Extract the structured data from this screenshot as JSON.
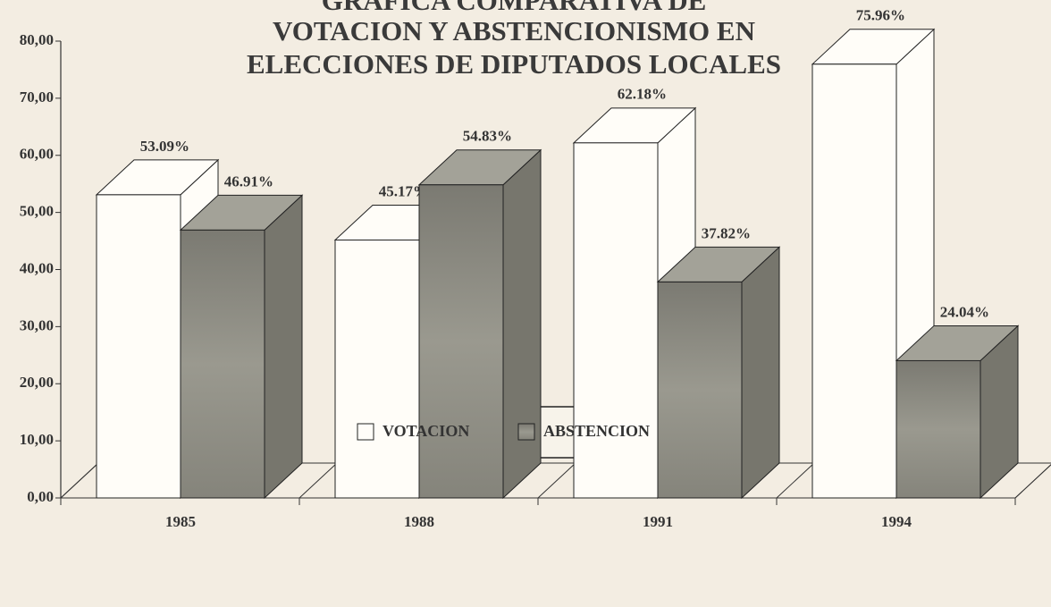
{
  "chart_data": {
    "type": "bar3d",
    "title": [
      "GRAFICA COMPARATIVA DE",
      "VOTACION Y ABSTENCIONISMO EN",
      "ELECCIONES DE DIPUTADOS LOCALES"
    ],
    "categories": [
      "1985",
      "1988",
      "1991",
      "1994"
    ],
    "series": [
      {
        "name": "VOTACION",
        "color": "#fffdf8",
        "values": [
          53.09,
          45.17,
          62.18,
          75.96
        ],
        "value_labels": [
          "53.09%",
          "45.17%",
          "62.18%",
          "75.96%"
        ]
      },
      {
        "name": "ABSTENCION",
        "color": "#8c8b82",
        "values": [
          46.91,
          54.83,
          37.82,
          24.04
        ],
        "value_labels": [
          "46.91%",
          "54.83%",
          "37.82%",
          "24.04%"
        ]
      }
    ],
    "ylim": [
      0,
      80
    ],
    "yticks": [
      {
        "value": 0,
        "label": "0,00"
      },
      {
        "value": 10,
        "label": "10,00"
      },
      {
        "value": 20,
        "label": "20,00"
      },
      {
        "value": 30,
        "label": "30,00"
      },
      {
        "value": 40,
        "label": "40,00"
      },
      {
        "value": 50,
        "label": "50,00"
      },
      {
        "value": 60,
        "label": "60,00"
      },
      {
        "value": 70,
        "label": "70,00"
      },
      {
        "value": 80,
        "label": "80,00"
      }
    ],
    "legend": "bottom"
  }
}
